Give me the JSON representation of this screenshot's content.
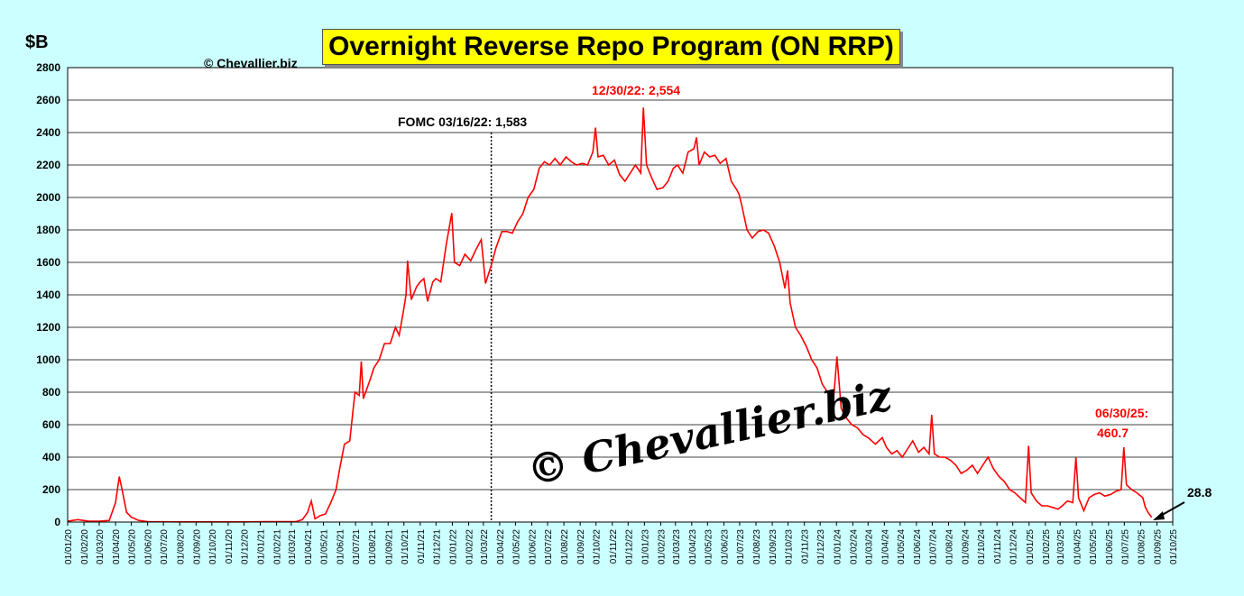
{
  "page": {
    "title": "Overnight Reverse Repo Program (ON RRP)",
    "unit_label": "$B",
    "copyright_small": "© Chevallier.biz",
    "watermark": "© Chevallier.biz"
  },
  "annotations": {
    "fomc": "FOMC 03/16/22: 1,583",
    "peak": "12/30/22: 2,554",
    "june_a": "06/30/25:",
    "june_b": "460.7",
    "latest": "28.8"
  },
  "colors": {
    "background": "#ccffff",
    "series": "#ff0000",
    "title_bg": "#ffff00",
    "peak_label": "#ff0000"
  },
  "chart_data": {
    "type": "line",
    "title": "Overnight Reverse Repo Program (ON RRP)",
    "ylabel": "$B",
    "ylim": [
      0,
      2800
    ],
    "yticks": [
      0,
      200,
      400,
      600,
      800,
      1000,
      1200,
      1400,
      1600,
      1800,
      2000,
      2200,
      2400,
      2600,
      2800
    ],
    "xlim": [
      "2020-01-01",
      "2025-10-01"
    ],
    "xticks": [
      "01/01/20",
      "01/02/20",
      "01/03/20",
      "01/04/20",
      "01/05/20",
      "01/06/20",
      "01/07/20",
      "01/08/20",
      "01/09/20",
      "01/10/20",
      "01/11/20",
      "01/12/20",
      "01/01/21",
      "01/02/21",
      "01/03/21",
      "01/04/21",
      "01/05/21",
      "01/06/21",
      "01/07/21",
      "01/08/21",
      "01/09/21",
      "01/10/21",
      "01/11/21",
      "01/12/21",
      "01/01/22",
      "01/02/22",
      "01/03/22",
      "01/04/22",
      "01/05/22",
      "01/06/22",
      "01/07/22",
      "01/08/22",
      "01/09/22",
      "01/10/22",
      "01/11/22",
      "01/12/22",
      "01/01/23",
      "01/02/23",
      "01/03/23",
      "01/04/23",
      "01/05/23",
      "01/06/23",
      "01/07/23",
      "01/08/23",
      "01/09/23",
      "01/10/23",
      "01/11/23",
      "01/12/23",
      "01/01/24",
      "01/02/24",
      "01/03/24",
      "01/04/24",
      "01/05/24",
      "01/06/24",
      "01/07/24",
      "01/08/24",
      "01/09/24",
      "01/10/24",
      "01/11/24",
      "01/12/24",
      "01/01/25",
      "01/02/25",
      "01/03/25",
      "01/04/25",
      "01/05/25",
      "01/06/25",
      "01/07/25",
      "01/08/25",
      "01/09/25",
      "01/10/25"
    ],
    "grid": true,
    "vline": {
      "x": "2022-03-16",
      "style": "dotted"
    },
    "series": [
      {
        "values": [
          [
            "2020-01-01",
            5
          ],
          [
            "2020-01-20",
            15
          ],
          [
            "2020-02-10",
            5
          ],
          [
            "2020-03-01",
            5
          ],
          [
            "2020-03-20",
            10
          ],
          [
            "2020-04-01",
            120
          ],
          [
            "2020-04-08",
            280
          ],
          [
            "2020-04-14",
            190
          ],
          [
            "2020-04-22",
            60
          ],
          [
            "2020-05-01",
            30
          ],
          [
            "2020-05-15",
            10
          ],
          [
            "2020-06-01",
            3
          ],
          [
            "2020-08-01",
            1
          ],
          [
            "2020-12-01",
            1
          ],
          [
            "2021-01-15",
            3
          ],
          [
            "2021-02-15",
            2
          ],
          [
            "2021-03-10",
            3
          ],
          [
            "2021-03-22",
            15
          ],
          [
            "2021-04-01",
            60
          ],
          [
            "2021-04-08",
            130
          ],
          [
            "2021-04-15",
            20
          ],
          [
            "2021-04-25",
            40
          ],
          [
            "2021-05-05",
            50
          ],
          [
            "2021-05-15",
            120
          ],
          [
            "2021-05-25",
            200
          ],
          [
            "2021-06-01",
            330
          ],
          [
            "2021-06-10",
            480
          ],
          [
            "2021-06-20",
            500
          ],
          [
            "2021-06-30",
            800
          ],
          [
            "2021-07-08",
            780
          ],
          [
            "2021-07-12",
            990
          ],
          [
            "2021-07-16",
            760
          ],
          [
            "2021-07-28",
            870
          ],
          [
            "2021-08-05",
            950
          ],
          [
            "2021-08-15",
            1000
          ],
          [
            "2021-08-25",
            1100
          ],
          [
            "2021-09-05",
            1100
          ],
          [
            "2021-09-15",
            1200
          ],
          [
            "2021-09-22",
            1150
          ],
          [
            "2021-09-30",
            1300
          ],
          [
            "2021-10-05",
            1400
          ],
          [
            "2021-10-08",
            1610
          ],
          [
            "2021-10-15",
            1370
          ],
          [
            "2021-10-25",
            1450
          ],
          [
            "2021-11-01",
            1480
          ],
          [
            "2021-11-08",
            1500
          ],
          [
            "2021-11-15",
            1360
          ],
          [
            "2021-11-25",
            1480
          ],
          [
            "2021-12-01",
            1500
          ],
          [
            "2021-12-10",
            1480
          ],
          [
            "2021-12-20",
            1700
          ],
          [
            "2021-12-31",
            1904
          ],
          [
            "2022-01-05",
            1600
          ],
          [
            "2022-01-15",
            1580
          ],
          [
            "2022-01-25",
            1650
          ],
          [
            "2022-02-05",
            1610
          ],
          [
            "2022-02-15",
            1680
          ],
          [
            "2022-02-25",
            1740
          ],
          [
            "2022-03-05",
            1470
          ],
          [
            "2022-03-16",
            1583
          ],
          [
            "2022-03-25",
            1690
          ],
          [
            "2022-04-05",
            1790
          ],
          [
            "2022-04-15",
            1790
          ],
          [
            "2022-04-25",
            1780
          ],
          [
            "2022-05-05",
            1850
          ],
          [
            "2022-05-15",
            1900
          ],
          [
            "2022-05-25",
            2000
          ],
          [
            "2022-06-05",
            2050
          ],
          [
            "2022-06-15",
            2180
          ],
          [
            "2022-06-25",
            2220
          ],
          [
            "2022-07-05",
            2200
          ],
          [
            "2022-07-15",
            2240
          ],
          [
            "2022-07-25",
            2200
          ],
          [
            "2022-08-05",
            2250
          ],
          [
            "2022-08-15",
            2220
          ],
          [
            "2022-08-25",
            2200
          ],
          [
            "2022-09-05",
            2210
          ],
          [
            "2022-09-15",
            2200
          ],
          [
            "2022-09-25",
            2280
          ],
          [
            "2022-09-30",
            2430
          ],
          [
            "2022-10-05",
            2250
          ],
          [
            "2022-10-15",
            2260
          ],
          [
            "2022-10-25",
            2200
          ],
          [
            "2022-11-05",
            2230
          ],
          [
            "2022-11-15",
            2140
          ],
          [
            "2022-11-25",
            2100
          ],
          [
            "2022-12-05",
            2150
          ],
          [
            "2022-12-15",
            2200
          ],
          [
            "2022-12-25",
            2150
          ],
          [
            "2022-12-30",
            2554
          ],
          [
            "2023-01-05",
            2200
          ],
          [
            "2023-01-15",
            2120
          ],
          [
            "2023-01-25",
            2050
          ],
          [
            "2023-02-05",
            2060
          ],
          [
            "2023-02-15",
            2100
          ],
          [
            "2023-02-25",
            2180
          ],
          [
            "2023-03-05",
            2200
          ],
          [
            "2023-03-15",
            2150
          ],
          [
            "2023-03-25",
            2280
          ],
          [
            "2023-04-05",
            2300
          ],
          [
            "2023-04-10",
            2370
          ],
          [
            "2023-04-15",
            2200
          ],
          [
            "2023-04-25",
            2280
          ],
          [
            "2023-05-05",
            2250
          ],
          [
            "2023-05-15",
            2260
          ],
          [
            "2023-05-25",
            2210
          ],
          [
            "2023-06-05",
            2240
          ],
          [
            "2023-06-15",
            2100
          ],
          [
            "2023-06-25",
            2050
          ],
          [
            "2023-06-30",
            2020
          ],
          [
            "2023-07-05",
            1950
          ],
          [
            "2023-07-15",
            1800
          ],
          [
            "2023-07-25",
            1750
          ],
          [
            "2023-08-05",
            1790
          ],
          [
            "2023-08-15",
            1800
          ],
          [
            "2023-08-25",
            1780
          ],
          [
            "2023-09-05",
            1700
          ],
          [
            "2023-09-15",
            1600
          ],
          [
            "2023-09-25",
            1440
          ],
          [
            "2023-09-30",
            1550
          ],
          [
            "2023-10-05",
            1350
          ],
          [
            "2023-10-15",
            1200
          ],
          [
            "2023-10-25",
            1150
          ],
          [
            "2023-11-05",
            1080
          ],
          [
            "2023-11-15",
            1000
          ],
          [
            "2023-11-25",
            950
          ],
          [
            "2023-12-05",
            850
          ],
          [
            "2023-12-15",
            800
          ],
          [
            "2023-12-25",
            700
          ],
          [
            "2024-01-02",
            1020
          ],
          [
            "2024-01-10",
            700
          ],
          [
            "2024-01-20",
            640
          ],
          [
            "2024-01-30",
            600
          ],
          [
            "2024-02-10",
            580
          ],
          [
            "2024-02-20",
            540
          ],
          [
            "2024-03-01",
            520
          ],
          [
            "2024-03-15",
            480
          ],
          [
            "2024-03-28",
            520
          ],
          [
            "2024-04-05",
            460
          ],
          [
            "2024-04-15",
            420
          ],
          [
            "2024-04-25",
            440
          ],
          [
            "2024-05-05",
            400
          ],
          [
            "2024-05-15",
            450
          ],
          [
            "2024-05-25",
            500
          ],
          [
            "2024-06-05",
            430
          ],
          [
            "2024-06-15",
            460
          ],
          [
            "2024-06-25",
            420
          ],
          [
            "2024-06-30",
            660
          ],
          [
            "2024-07-05",
            420
          ],
          [
            "2024-07-15",
            400
          ],
          [
            "2024-07-25",
            400
          ],
          [
            "2024-08-05",
            380
          ],
          [
            "2024-08-15",
            350
          ],
          [
            "2024-08-25",
            300
          ],
          [
            "2024-09-05",
            320
          ],
          [
            "2024-09-15",
            350
          ],
          [
            "2024-09-25",
            300
          ],
          [
            "2024-10-05",
            350
          ],
          [
            "2024-10-15",
            400
          ],
          [
            "2024-10-25",
            330
          ],
          [
            "2024-11-05",
            280
          ],
          [
            "2024-11-15",
            250
          ],
          [
            "2024-11-25",
            200
          ],
          [
            "2024-12-05",
            180
          ],
          [
            "2024-12-15",
            150
          ],
          [
            "2024-12-25",
            120
          ],
          [
            "2024-12-31",
            470
          ],
          [
            "2025-01-05",
            180
          ],
          [
            "2025-01-15",
            130
          ],
          [
            "2025-01-25",
            100
          ],
          [
            "2025-02-05",
            100
          ],
          [
            "2025-02-15",
            90
          ],
          [
            "2025-02-25",
            80
          ],
          [
            "2025-03-05",
            100
          ],
          [
            "2025-03-15",
            130
          ],
          [
            "2025-03-25",
            120
          ],
          [
            "2025-03-31",
            400
          ],
          [
            "2025-04-05",
            150
          ],
          [
            "2025-04-15",
            70
          ],
          [
            "2025-04-25",
            150
          ],
          [
            "2025-05-05",
            170
          ],
          [
            "2025-05-15",
            180
          ],
          [
            "2025-05-25",
            160
          ],
          [
            "2025-06-05",
            170
          ],
          [
            "2025-06-15",
            190
          ],
          [
            "2025-06-25",
            200
          ],
          [
            "2025-06-30",
            460.7
          ],
          [
            "2025-07-05",
            230
          ],
          [
            "2025-07-15",
            200
          ],
          [
            "2025-07-25",
            180
          ],
          [
            "2025-08-05",
            150
          ],
          [
            "2025-08-10",
            90
          ],
          [
            "2025-08-15",
            60
          ],
          [
            "2025-08-22",
            28.8
          ]
        ]
      }
    ]
  }
}
